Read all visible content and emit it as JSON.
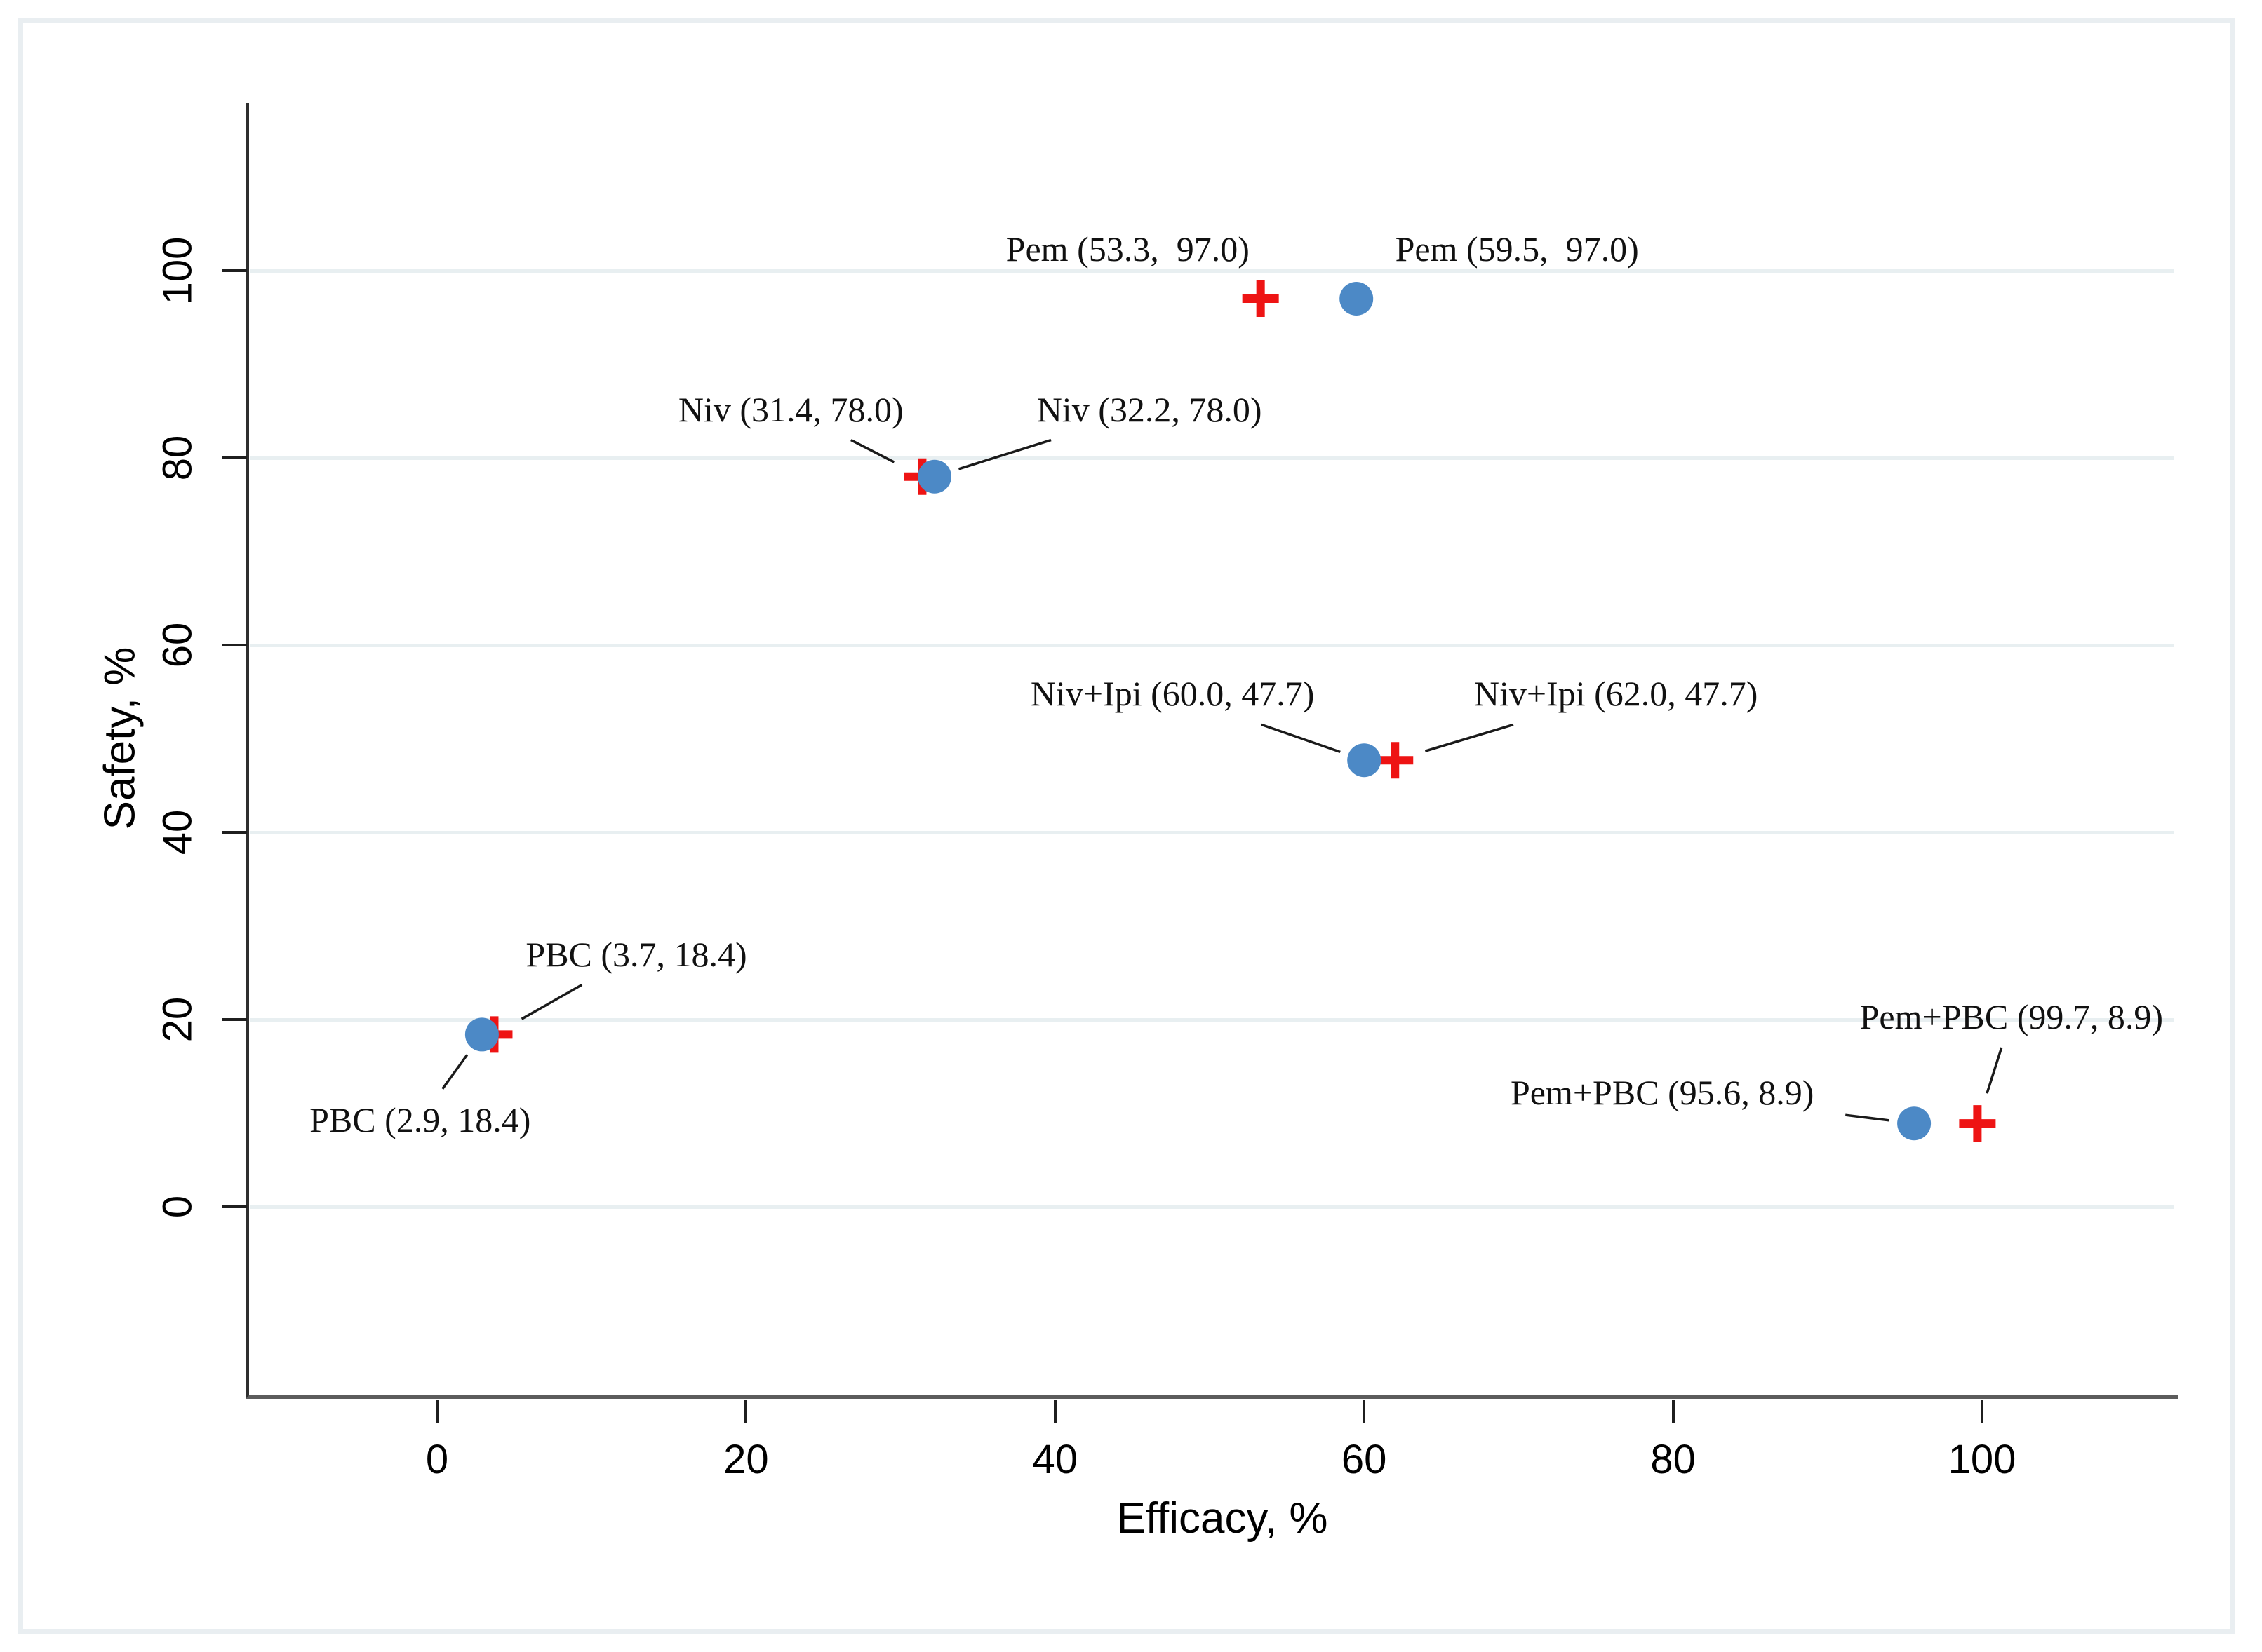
{
  "chart_data": {
    "type": "scatter",
    "title": "",
    "xlabel": "Efficacy, %",
    "ylabel": "Safety, %",
    "xlim": [
      -12.3,
      112.5
    ],
    "ylim": [
      -20,
      118
    ],
    "x_ticks": [
      "0",
      "20",
      "40",
      "60",
      "80",
      "100"
    ],
    "x_tick_values": [
      0,
      20,
      40,
      60,
      80,
      100
    ],
    "y_ticks": [
      "0",
      "20",
      "40",
      "60",
      "80",
      "100"
    ],
    "y_tick_values": [
      0,
      20,
      40,
      60,
      80,
      100
    ],
    "grid": "horizontal",
    "legend": "none",
    "colors": {
      "circle_marker": "#4c89c6",
      "plus_marker": "#ee1414",
      "gridline": "#e8eff1",
      "leader_line": "#1a1a1a",
      "outer_border": "#e9eef1",
      "text": "#000000"
    },
    "points": [
      {
        "treatment": "Pem",
        "marker": "plus",
        "x": 53.3,
        "y": 97.0,
        "label": "Pem (53.3,  97.0)",
        "label_x": 44.7,
        "label_y": 102.3,
        "leader": false
      },
      {
        "treatment": "Pem",
        "marker": "circle",
        "x": 59.5,
        "y": 97.0,
        "label": "Pem (59.5,  97.0)",
        "label_x": 69.9,
        "label_y": 102.3,
        "leader": false
      },
      {
        "treatment": "Niv",
        "marker": "plus",
        "x": 31.4,
        "y": 78.0,
        "label": "Niv (31.4, 78.0)",
        "label_x": 22.9,
        "label_y": 85.2,
        "leader": true
      },
      {
        "treatment": "Niv",
        "marker": "circle",
        "x": 32.2,
        "y": 78.0,
        "label": "Niv (32.2, 78.0)",
        "label_x": 46.1,
        "label_y": 85.2,
        "leader": true
      },
      {
        "treatment": "Niv+Ipi",
        "marker": "circle",
        "x": 60.0,
        "y": 47.7,
        "label": "Niv+Ipi (60.0, 47.7)",
        "label_x": 47.6,
        "label_y": 54.8,
        "leader": true
      },
      {
        "treatment": "Niv+Ipi",
        "marker": "plus",
        "x": 62.0,
        "y": 47.7,
        "label": "Niv+Ipi (62.0, 47.7)",
        "label_x": 76.3,
        "label_y": 54.8,
        "leader": true
      },
      {
        "treatment": "PBC",
        "marker": "plus",
        "x": 3.7,
        "y": 18.4,
        "label": "PBC (3.7, 18.4)",
        "label_x": 12.9,
        "label_y": 27.0,
        "leader": true
      },
      {
        "treatment": "PBC",
        "marker": "circle",
        "x": 2.9,
        "y": 18.4,
        "label": "PBC (2.9, 18.4)",
        "label_x": -1.1,
        "label_y": 9.3,
        "leader": true
      },
      {
        "treatment": "Pem+PBC",
        "marker": "circle",
        "x": 95.6,
        "y": 8.9,
        "label": "Pem+PBC (95.6, 8.9)",
        "label_x": 79.3,
        "label_y": 12.2,
        "leader": true
      },
      {
        "treatment": "Pem+PBC",
        "marker": "plus",
        "x": 99.7,
        "y": 8.9,
        "label": "Pem+PBC (99.7, 8.9)",
        "label_x": 101.9,
        "label_y": 20.3,
        "leader": true
      }
    ]
  }
}
